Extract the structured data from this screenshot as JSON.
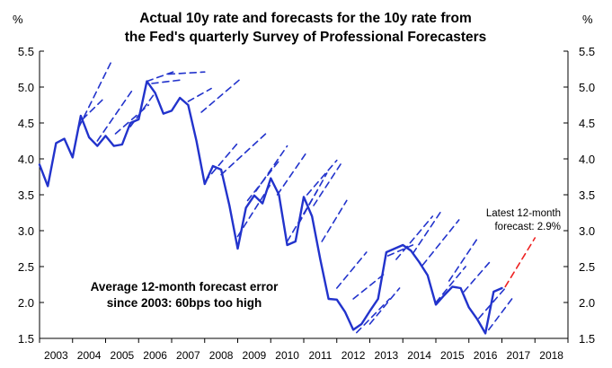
{
  "chart_data": {
    "type": "line",
    "title": [
      "Actual 10y rate and forecasts for the 10y rate from",
      "the Fed's quarterly Survey of Professional Forecasters"
    ],
    "ylabel_left": "%",
    "ylabel_right": "%",
    "ylim": [
      1.5,
      5.5
    ],
    "yticks": [
      "1.5",
      "2.0",
      "2.5",
      "3.0",
      "3.5",
      "4.0",
      "4.5",
      "5.0",
      "5.5"
    ],
    "xlim": [
      2003,
      2019
    ],
    "xticks": [
      "2003",
      "2004",
      "2005",
      "2006",
      "2007",
      "2008",
      "2009",
      "2010",
      "2011",
      "2012",
      "2013",
      "2014",
      "2015",
      "2016",
      "2017",
      "2018"
    ],
    "grid": false,
    "annotations": {
      "note": [
        "Average 12-month forecast error",
        "since 2003: 60bps too high"
      ],
      "latest": [
        "Latest 12-month",
        "forecast: 2.9%"
      ]
    },
    "series": [
      {
        "type": "solid",
        "color": "#2233cc",
        "x": [
          2003.0,
          2003.25,
          2003.5,
          2003.75,
          2004.0,
          2004.25,
          2004.5,
          2004.75,
          2005.0,
          2005.25,
          2005.5,
          2005.75,
          2006.0,
          2006.25,
          2006.5,
          2006.75,
          2007.0,
          2007.25,
          2007.5,
          2007.75,
          2008.0,
          2008.25,
          2008.5,
          2008.75,
          2009.0,
          2009.25,
          2009.5,
          2009.75,
          2010.0,
          2010.25,
          2010.5,
          2010.75,
          2011.0,
          2011.25,
          2011.5,
          2011.75,
          2012.0,
          2012.25,
          2012.5,
          2012.75,
          2013.0,
          2013.25,
          2013.5,
          2013.75,
          2014.0,
          2014.25,
          2014.5,
          2014.75,
          2015.0,
          2015.25,
          2015.5,
          2015.75,
          2016.0,
          2016.25,
          2016.5,
          2016.75,
          2017.0
        ],
        "y": [
          3.92,
          3.62,
          4.22,
          4.28,
          4.02,
          4.6,
          4.3,
          4.18,
          4.32,
          4.18,
          4.2,
          4.5,
          4.55,
          5.08,
          4.92,
          4.63,
          4.67,
          4.85,
          4.75,
          4.25,
          3.65,
          3.9,
          3.85,
          3.35,
          2.75,
          3.32,
          3.49,
          3.38,
          3.73,
          3.5,
          2.8,
          2.85,
          3.47,
          3.2,
          2.6,
          2.05,
          2.04,
          1.87,
          1.62,
          1.7,
          1.88,
          2.05,
          2.7,
          2.75,
          2.8,
          2.72,
          2.56,
          2.38,
          1.97,
          2.1,
          2.22,
          2.2,
          1.93,
          1.77,
          1.57,
          2.15,
          2.2
        ]
      },
      {
        "type": "dashed",
        "color": "#2233cc",
        "x": [
          2004.2,
          2005.2
        ],
        "y": [
          4.45,
          5.38
        ]
      },
      {
        "type": "dashed",
        "color": "#2233cc",
        "x": [
          2004.3,
          2004.9
        ],
        "y": [
          4.55,
          4.82
        ]
      },
      {
        "type": "dashed",
        "color": "#2233cc",
        "x": [
          2004.75,
          2005.8
        ],
        "y": [
          4.25,
          4.95
        ]
      },
      {
        "type": "dashed",
        "color": "#2233cc",
        "x": [
          2005.3,
          2006.3
        ],
        "y": [
          4.35,
          4.75
        ]
      },
      {
        "type": "dashed",
        "color": "#2233cc",
        "x": [
          2005.75,
          2006.5
        ],
        "y": [
          4.45,
          4.92
        ]
      },
      {
        "type": "dashed",
        "color": "#2233cc",
        "x": [
          2006.25,
          2007.1
        ],
        "y": [
          5.08,
          5.22
        ]
      },
      {
        "type": "dashed",
        "color": "#2233cc",
        "x": [
          2006.4,
          2007.3
        ],
        "y": [
          5.05,
          5.1
        ]
      },
      {
        "type": "dashed",
        "color": "#2233cc",
        "x": [
          2006.9,
          2008.0
        ],
        "y": [
          5.18,
          5.21
        ]
      },
      {
        "type": "dashed",
        "color": "#2233cc",
        "x": [
          2007.5,
          2008.2
        ],
        "y": [
          4.8,
          4.98
        ]
      },
      {
        "type": "dashed",
        "color": "#2233cc",
        "x": [
          2007.9,
          2009.1
        ],
        "y": [
          4.65,
          5.12
        ]
      },
      {
        "type": "dashed",
        "color": "#2233cc",
        "x": [
          2008.0,
          2009.0
        ],
        "y": [
          3.68,
          4.22
        ]
      },
      {
        "type": "dashed",
        "color": "#2233cc",
        "x": [
          2008.5,
          2009.85
        ],
        "y": [
          3.78,
          4.35
        ]
      },
      {
        "type": "dashed",
        "color": "#2233cc",
        "x": [
          2009.0,
          2010.0
        ],
        "y": [
          2.92,
          3.65
        ]
      },
      {
        "type": "dashed",
        "color": "#2233cc",
        "x": [
          2009.3,
          2010.3
        ],
        "y": [
          3.42,
          4.0
        ]
      },
      {
        "type": "dashed",
        "color": "#2233cc",
        "x": [
          2009.55,
          2010.5
        ],
        "y": [
          3.55,
          4.18
        ]
      },
      {
        "type": "dashed",
        "color": "#2233cc",
        "x": [
          2010.2,
          2011.1
        ],
        "y": [
          3.5,
          4.1
        ]
      },
      {
        "type": "dashed",
        "color": "#2233cc",
        "x": [
          2010.5,
          2011.4
        ],
        "y": [
          2.85,
          3.55
        ]
      },
      {
        "type": "dashed",
        "color": "#2233cc",
        "x": [
          2010.85,
          2011.7
        ],
        "y": [
          3.1,
          3.8
        ]
      },
      {
        "type": "dashed",
        "color": "#2233cc",
        "x": [
          2011.1,
          2012.0
        ],
        "y": [
          3.5,
          3.98
        ]
      },
      {
        "type": "dashed",
        "color": "#2233cc",
        "x": [
          2011.3,
          2012.15
        ],
        "y": [
          3.35,
          3.95
        ]
      },
      {
        "type": "dashed",
        "color": "#2233cc",
        "x": [
          2011.55,
          2012.3
        ],
        "y": [
          2.85,
          3.42
        ]
      },
      {
        "type": "dashed",
        "color": "#2233cc",
        "x": [
          2012.0,
          2012.9
        ],
        "y": [
          2.2,
          2.7
        ]
      },
      {
        "type": "dashed",
        "color": "#2233cc",
        "x": [
          2012.5,
          2013.5
        ],
        "y": [
          2.05,
          2.42
        ]
      },
      {
        "type": "dashed",
        "color": "#2233cc",
        "x": [
          2012.6,
          2013.6
        ],
        "y": [
          1.58,
          2.05
        ]
      },
      {
        "type": "dashed",
        "color": "#2233cc",
        "x": [
          2013.0,
          2013.9
        ],
        "y": [
          1.7,
          2.2
        ]
      },
      {
        "type": "dashed",
        "color": "#2233cc",
        "x": [
          2013.55,
          2014.3
        ],
        "y": [
          2.65,
          2.8
        ]
      },
      {
        "type": "dashed",
        "color": "#2233cc",
        "x": [
          2013.8,
          2014.9
        ],
        "y": [
          2.6,
          3.2
        ]
      },
      {
        "type": "dashed",
        "color": "#2233cc",
        "x": [
          2014.3,
          2015.2
        ],
        "y": [
          2.68,
          3.3
        ]
      },
      {
        "type": "dashed",
        "color": "#2233cc",
        "x": [
          2014.6,
          2015.7
        ],
        "y": [
          2.52,
          3.15
        ]
      },
      {
        "type": "dashed",
        "color": "#2233cc",
        "x": [
          2015.0,
          2015.9
        ],
        "y": [
          2.0,
          2.5
        ]
      },
      {
        "type": "dashed",
        "color": "#2233cc",
        "x": [
          2015.4,
          2016.3
        ],
        "y": [
          2.3,
          2.92
        ]
      },
      {
        "type": "dashed",
        "color": "#2233cc",
        "x": [
          2015.85,
          2016.7
        ],
        "y": [
          2.15,
          2.6
        ]
      },
      {
        "type": "dashed",
        "color": "#2233cc",
        "x": [
          2016.3,
          2017.1
        ],
        "y": [
          1.78,
          2.2
        ]
      },
      {
        "type": "dashed",
        "color": "#2233cc",
        "x": [
          2016.6,
          2017.35
        ],
        "y": [
          1.62,
          2.08
        ]
      },
      {
        "type": "dashed",
        "color": "#ee2222",
        "x": [
          2017.1,
          2018.0
        ],
        "y": [
          2.22,
          2.9
        ]
      }
    ]
  }
}
